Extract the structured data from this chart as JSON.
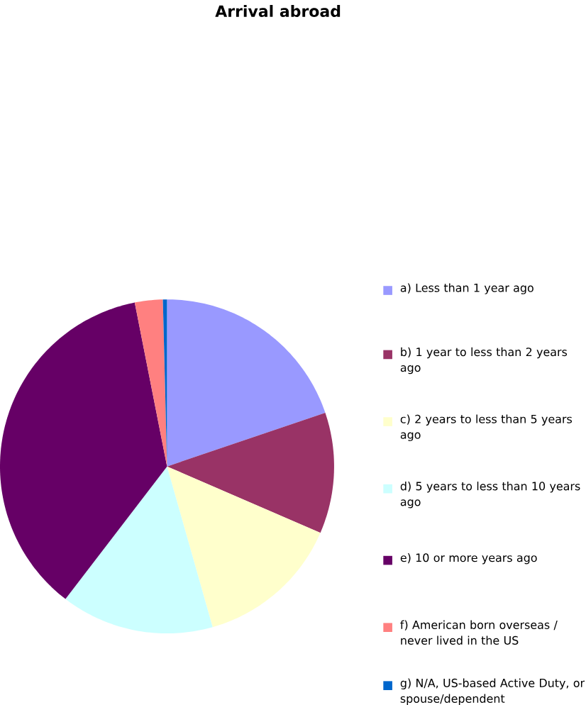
{
  "chart_data": {
    "type": "pie",
    "title": "Arrival abroad",
    "categories": [
      "a) Less than 1 year ago",
      "b) 1 year to less than 2 years ago",
      "c) 2 years to less than 5 years ago",
      "d) 5 years to less than 10 years ago",
      "e) 10 or more years ago",
      "f) American born overseas / never lived in the US",
      "g) N/A, US-based Active Duty, or spouse/dependent"
    ],
    "values": [
      19.8,
      11.7,
      14.1,
      14.8,
      36.5,
      2.7,
      0.4
    ],
    "colors": [
      "#9999ff",
      "#993366",
      "#ffffcc",
      "#ccffff",
      "#660066",
      "#ff8080",
      "#0066cc"
    ],
    "legend": "right"
  }
}
